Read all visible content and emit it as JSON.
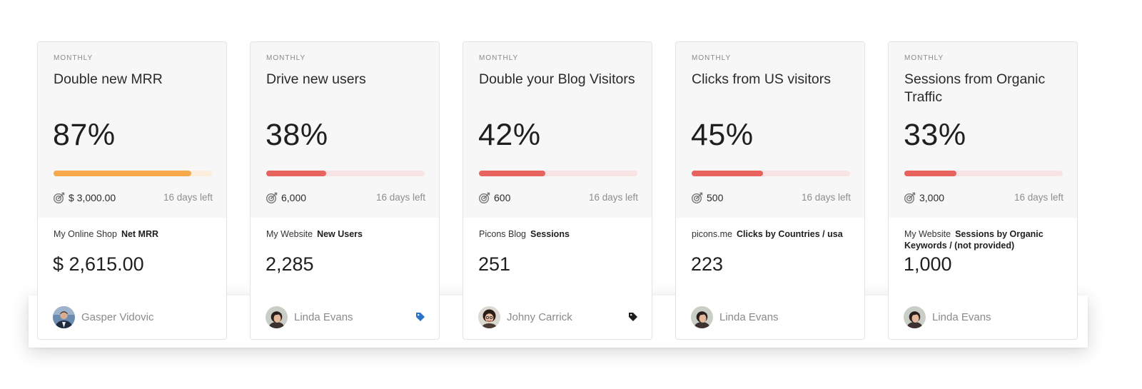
{
  "cards": [
    {
      "period": "MONTHLY",
      "title": "Double new MRR",
      "percent": "87%",
      "progress": 0.87,
      "target": "$ 3,000.00",
      "days_left": "16 days left",
      "source": "My Online Shop",
      "metric": "Net MRR",
      "actual": "$ 2,615.00",
      "owner": "Gasper Vidovic",
      "tag": "none",
      "bar_color": "#f5a94a",
      "track_color": "#fbeedd"
    },
    {
      "period": "MONTHLY",
      "title": "Drive new users",
      "percent": "38%",
      "progress": 0.38,
      "target": "6,000",
      "days_left": "16 days left",
      "source": "My Website",
      "metric": "New Users",
      "actual": "2,285",
      "owner": "Linda Evans",
      "tag": "tag-icon-blue",
      "tag_color": "#2a73c9",
      "bar_color": "#e8625e",
      "track_color": "#f8e4e2"
    },
    {
      "period": "MONTHLY",
      "title": "Double your Blog Visitors",
      "percent": "42%",
      "progress": 0.42,
      "target": "600",
      "days_left": "16 days left",
      "source": "Picons Blog",
      "metric": "Sessions",
      "actual": "251",
      "owner": "Johny Carrick",
      "tag": "tag-icon-black",
      "tag_color": "#1d1d1d",
      "bar_color": "#e8625e",
      "track_color": "#f8e4e2"
    },
    {
      "period": "MONTHLY",
      "title": "Clicks from US visitors",
      "percent": "45%",
      "progress": 0.45,
      "target": "500",
      "days_left": "16 days left",
      "source": "picons.me",
      "metric": "Clicks by Countries / usa",
      "actual": "223",
      "owner": "Linda Evans",
      "tag": "none",
      "bar_color": "#e8625e",
      "track_color": "#f8e4e2"
    },
    {
      "period": "MONTHLY",
      "title": "Sessions from Organic Traffic",
      "percent": "33%",
      "progress": 0.33,
      "target": "3,000",
      "days_left": "16 days left",
      "source": "My Website",
      "metric": "Sessions by Organic Keywords / (not provided)",
      "actual": "1,000",
      "owner": "Linda Evans",
      "tag": "none",
      "bar_color": "#e8625e",
      "track_color": "#f8e4e2"
    }
  ]
}
